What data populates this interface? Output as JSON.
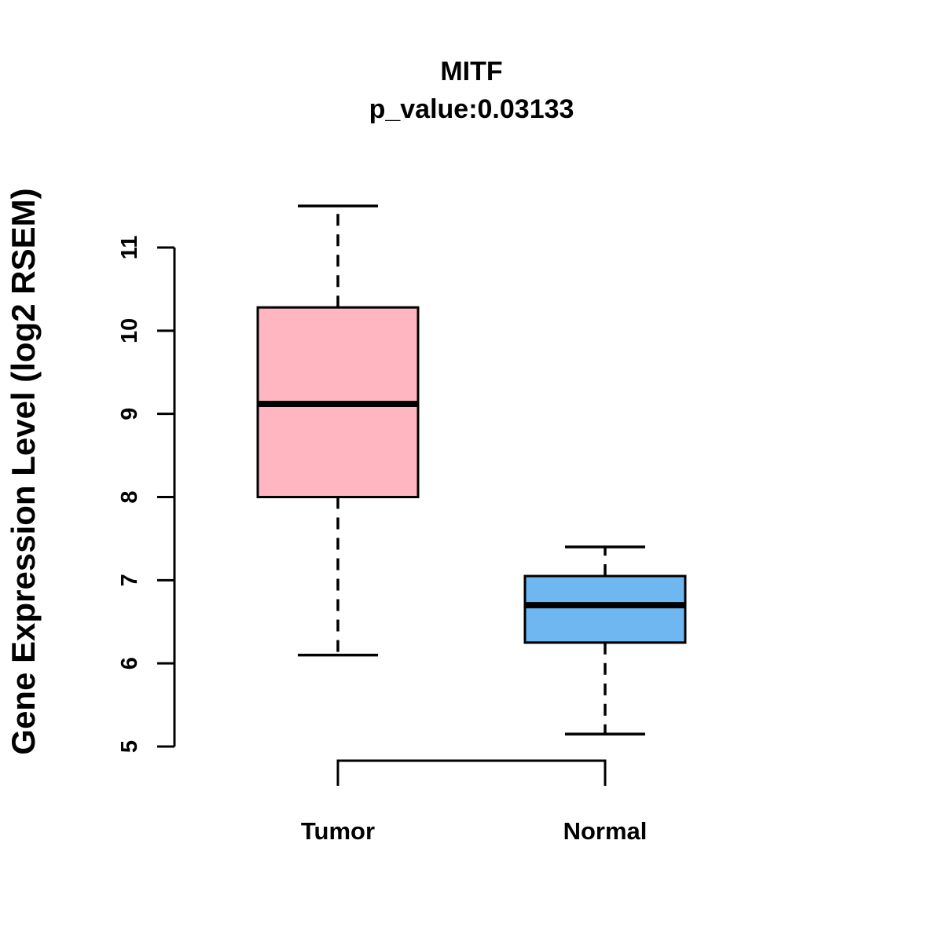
{
  "chart_data": {
    "type": "boxplot",
    "title": "MITF",
    "subtitle": "p_value:0.03133",
    "ylabel": "Gene Expression Level (log2 RSEM)",
    "xlabel": "",
    "ylim": [
      5,
      11.5
    ],
    "y_ticks": [
      5,
      6,
      7,
      8,
      9,
      10,
      11
    ],
    "grid": false,
    "legend": "none",
    "groups": [
      {
        "label": "Tumor",
        "color": "#FFB6C1",
        "whisker_low": 6.1,
        "q1": 8.0,
        "median": 9.12,
        "q3": 10.28,
        "whisker_high": 11.5
      },
      {
        "label": "Normal",
        "color": "#6FB7F0",
        "whisker_low": 5.15,
        "q1": 6.25,
        "median": 6.7,
        "q3": 7.05,
        "whisker_high": 7.4
      }
    ]
  }
}
